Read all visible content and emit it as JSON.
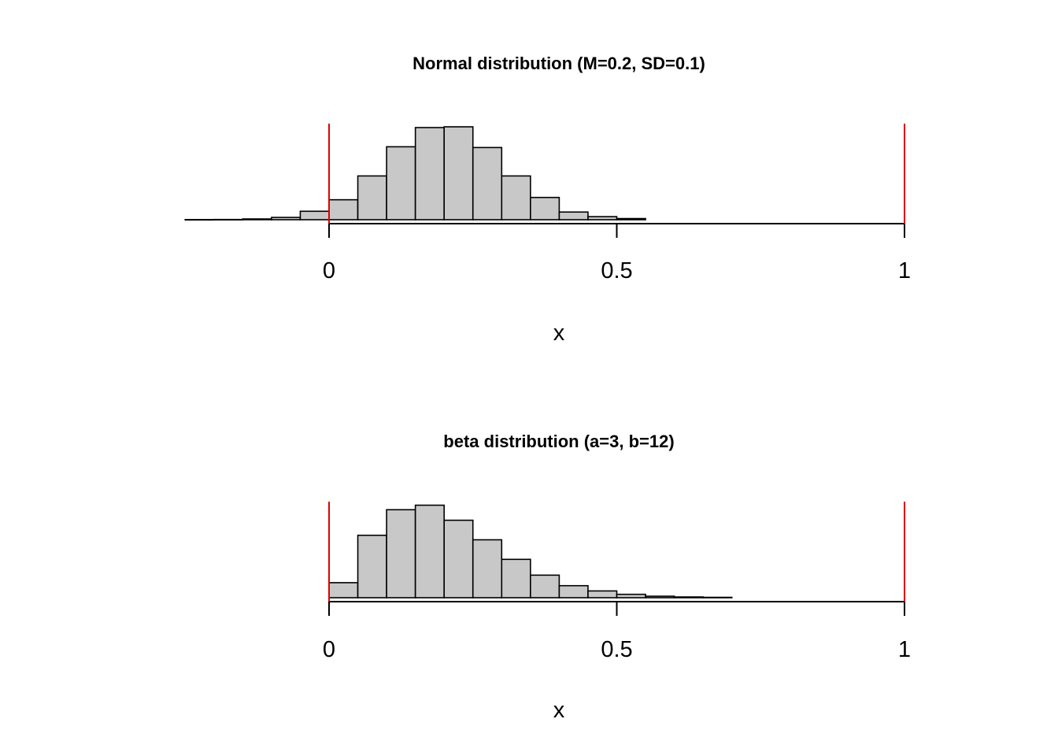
{
  "chart_data": [
    {
      "type": "bar",
      "title": "Normal distribution (M=0.2, SD=0.1)",
      "xlabel": "x",
      "ylabel": "",
      "xlim": [
        -0.25,
        1.0
      ],
      "xticks": [
        0,
        0.5,
        1
      ],
      "xtick_labels": [
        "0",
        "0.5",
        "1"
      ],
      "bin_width": 0.05,
      "bin_starts": [
        -0.25,
        -0.2,
        -0.15,
        -0.1,
        -0.05,
        0.0,
        0.05,
        0.1,
        0.15,
        0.2,
        0.25,
        0.3,
        0.35,
        0.4,
        0.45,
        0.5
      ],
      "values": [
        0.002,
        0.003,
        0.01,
        0.03,
        0.11,
        0.26,
        0.57,
        0.95,
        1.2,
        1.21,
        0.94,
        0.57,
        0.29,
        0.1,
        0.04,
        0.015
      ],
      "reference_lines": [
        0,
        1
      ],
      "bar_color": "#c8c8c8",
      "reference_line_color": "#e00000",
      "grid": false,
      "legend": "none"
    },
    {
      "type": "bar",
      "title": "beta distribution (a=3, b=12)",
      "xlabel": "x",
      "ylabel": "",
      "xlim": [
        0,
        1.0
      ],
      "xticks": [
        0,
        0.5,
        1
      ],
      "xtick_labels": [
        "0",
        "0.5",
        "1"
      ],
      "bin_width": 0.05,
      "bin_starts": [
        0.0,
        0.05,
        0.1,
        0.15,
        0.2,
        0.25,
        0.3,
        0.35,
        0.4,
        0.45,
        0.5,
        0.55,
        0.6,
        0.65
      ],
      "values": [
        0.2,
        0.83,
        1.17,
        1.23,
        1.03,
        0.77,
        0.51,
        0.3,
        0.16,
        0.09,
        0.045,
        0.02,
        0.01,
        0.005
      ],
      "reference_lines": [
        0,
        1
      ],
      "bar_color": "#c8c8c8",
      "reference_line_color": "#e00000",
      "grid": false,
      "legend": "none"
    }
  ]
}
